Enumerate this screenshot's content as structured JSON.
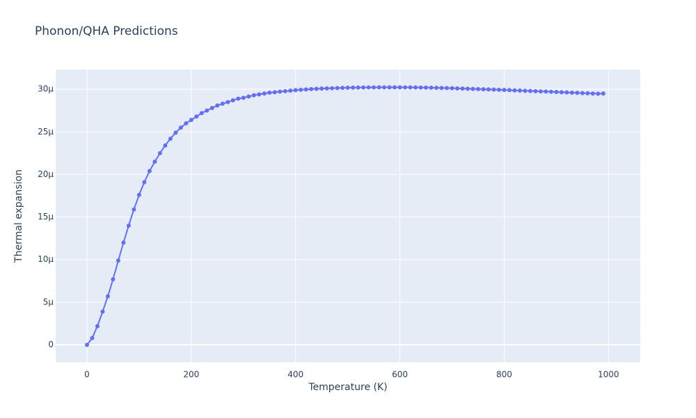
{
  "chart_data": {
    "type": "line",
    "title": "Phonon/QHA Predictions",
    "x_label": "Temperature (K)",
    "y_label": "Thermal expansion",
    "x": [
      0,
      10,
      20,
      30,
      40,
      50,
      60,
      70,
      80,
      90,
      100,
      110,
      120,
      130,
      140,
      150,
      160,
      170,
      180,
      190,
      200,
      210,
      220,
      230,
      240,
      250,
      260,
      270,
      280,
      290,
      300,
      310,
      320,
      330,
      340,
      350,
      360,
      370,
      380,
      390,
      400,
      410,
      420,
      430,
      440,
      450,
      460,
      470,
      480,
      490,
      500,
      510,
      520,
      530,
      540,
      550,
      560,
      570,
      580,
      590,
      600,
      610,
      620,
      630,
      640,
      650,
      660,
      670,
      680,
      690,
      700,
      710,
      720,
      730,
      740,
      750,
      760,
      770,
      780,
      790,
      800,
      810,
      820,
      830,
      840,
      850,
      860,
      870,
      880,
      890,
      900,
      910,
      920,
      930,
      940,
      950,
      960,
      970,
      980,
      990
    ],
    "series": [
      {
        "name": "Thermal expansion",
        "color": "#636efa",
        "values": [
          0,
          8e-07,
          2.2e-06,
          3.9e-06,
          5.7e-06,
          7.7e-06,
          9.9e-06,
          1.2e-05,
          1.4e-05,
          1.59e-05,
          1.76e-05,
          1.91e-05,
          2.04e-05,
          2.15e-05,
          2.25e-05,
          2.34e-05,
          2.42e-05,
          2.49e-05,
          2.55e-05,
          2.6e-05,
          2.64e-05,
          2.68e-05,
          2.72e-05,
          2.75e-05,
          2.78e-05,
          2.81e-05,
          2.83e-05,
          2.85e-05,
          2.87e-05,
          2.89e-05,
          2.9e-05,
          2.915e-05,
          2.93e-05,
          2.94e-05,
          2.95e-05,
          2.96e-05,
          2.965e-05,
          2.972e-05,
          2.978e-05,
          2.984e-05,
          2.99e-05,
          2.994e-05,
          2.998e-05,
          3.002e-05,
          3.005e-05,
          3.008e-05,
          3.01e-05,
          3.012e-05,
          3.014e-05,
          3.016e-05,
          3.018e-05,
          3.019e-05,
          3.02e-05,
          3.021e-05,
          3.022e-05,
          3.022e-05,
          3.023e-05,
          3.023e-05,
          3.023e-05,
          3.023e-05,
          3.023e-05,
          3.022e-05,
          3.022e-05,
          3.021e-05,
          3.02e-05,
          3.019e-05,
          3.018e-05,
          3.017e-05,
          3.015e-05,
          3.014e-05,
          3.012e-05,
          3.01e-05,
          3.008e-05,
          3.006e-05,
          3.004e-05,
          3.002e-05,
          3e-05,
          2.998e-05,
          2.996e-05,
          2.994e-05,
          2.992e-05,
          2.99e-05,
          2.987e-05,
          2.985e-05,
          2.982e-05,
          2.98e-05,
          2.978e-05,
          2.975e-05,
          2.973e-05,
          2.97e-05,
          2.968e-05,
          2.965e-05,
          2.963e-05,
          2.96e-05,
          2.958e-05,
          2.955e-05,
          2.953e-05,
          2.95e-05,
          2.948e-05,
          2.95e-05
        ]
      }
    ],
    "xlim": [
      -60,
      1061
    ],
    "xticks": [
      0,
      200,
      400,
      600,
      800,
      1000
    ],
    "ylim": [
      -2.04e-06,
      3.23e-05
    ],
    "yticks": [
      0,
      {
        "value": 5e-06,
        "label": "5μ"
      },
      {
        "value": 1e-05,
        "label": "10μ"
      },
      {
        "value": 1.5e-05,
        "label": "15μ"
      },
      {
        "value": 2e-05,
        "label": "20μ"
      },
      {
        "value": 2.5e-05,
        "label": "25μ"
      },
      {
        "value": 3e-05,
        "label": "30μ"
      }
    ],
    "grid": true
  }
}
